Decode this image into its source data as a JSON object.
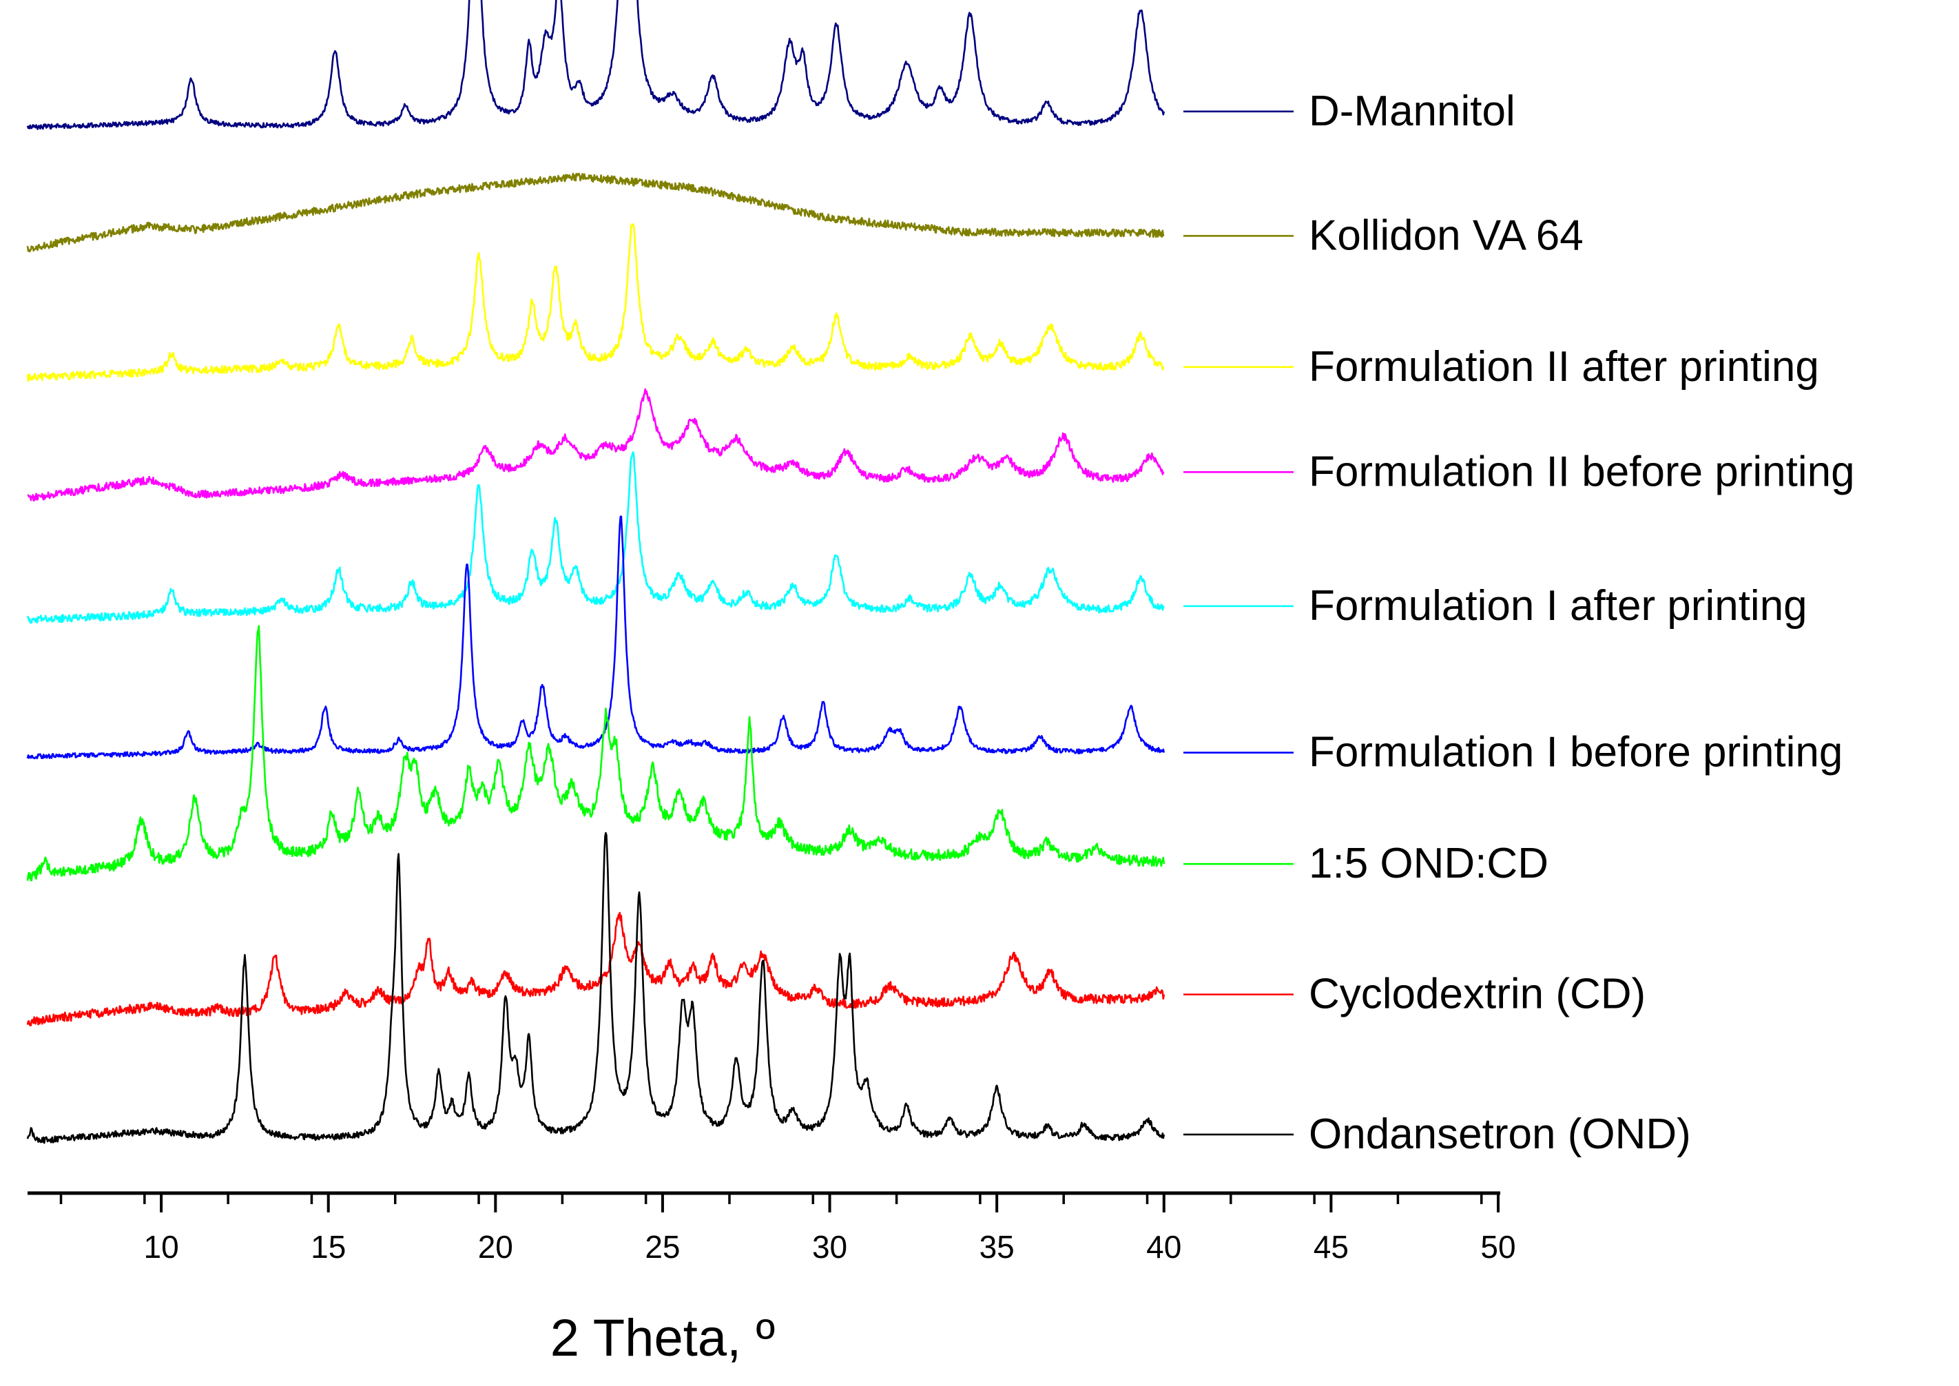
{
  "chart_data": {
    "type": "line",
    "title": "",
    "xlabel": "2 Theta, º",
    "ylabel": "",
    "xlim": [
      6,
      50
    ],
    "x_ticks": [
      10,
      15,
      20,
      25,
      30,
      35,
      40,
      45,
      50
    ],
    "legend_position": "right",
    "series": [
      {
        "name": "D-Mannitol",
        "color": "#000080",
        "baseline": 15.0,
        "background": [
          [
            6,
            0
          ],
          [
            10,
            0.05
          ],
          [
            14,
            0
          ],
          [
            40,
            0
          ]
        ],
        "peaks": [
          [
            10.9,
            0.6,
            0.15
          ],
          [
            15.2,
            1.0,
            0.17
          ],
          [
            17.3,
            0.25,
            0.15
          ],
          [
            19.4,
            3.55,
            0.17
          ],
          [
            21.0,
            0.9,
            0.12
          ],
          [
            21.5,
            0.9,
            0.2
          ],
          [
            21.9,
            1.7,
            0.16
          ],
          [
            22.5,
            0.35,
            0.15
          ],
          [
            23.95,
            5.7,
            0.19
          ],
          [
            25.3,
            0.3,
            0.3
          ],
          [
            26.5,
            0.6,
            0.22
          ],
          [
            28.8,
            1.0,
            0.22
          ],
          [
            29.2,
            0.7,
            0.15
          ],
          [
            30.2,
            1.3,
            0.2
          ],
          [
            32.3,
            0.8,
            0.3
          ],
          [
            33.3,
            0.35,
            0.18
          ],
          [
            34.2,
            1.45,
            0.24
          ],
          [
            36.5,
            0.3,
            0.2
          ],
          [
            39.3,
            1.55,
            0.25
          ]
        ],
        "noise": 0.03
      },
      {
        "name": "Kollidon VA 64",
        "color": "#808000",
        "baseline": 13.4,
        "background": [
          [
            6,
            0
          ],
          [
            9.6,
            0.3
          ],
          [
            11,
            0.25
          ],
          [
            14,
            0.45
          ],
          [
            18,
            0.75
          ],
          [
            22.5,
            0.95
          ],
          [
            26,
            0.8
          ],
          [
            30,
            0.4
          ],
          [
            34,
            0.22
          ],
          [
            40,
            0.2
          ]
        ],
        "peaks": [],
        "noise": 0.05
      },
      {
        "name": "Formulation II after printing",
        "color": "#ffff00",
        "baseline": 11.7,
        "background": [
          [
            6,
            0
          ],
          [
            9,
            0.05
          ],
          [
            12,
            0.1
          ],
          [
            20,
            0.15
          ],
          [
            30,
            0.12
          ],
          [
            40,
            0.1
          ]
        ],
        "peaks": [
          [
            10.3,
            0.25,
            0.13
          ],
          [
            13.6,
            0.12,
            0.15
          ],
          [
            15.3,
            0.55,
            0.16
          ],
          [
            17.5,
            0.35,
            0.15
          ],
          [
            19.5,
            1.45,
            0.17
          ],
          [
            21.1,
            0.75,
            0.15
          ],
          [
            21.8,
            1.25,
            0.17
          ],
          [
            22.4,
            0.45,
            0.15
          ],
          [
            24.1,
            1.9,
            0.18
          ],
          [
            25.5,
            0.35,
            0.25
          ],
          [
            26.5,
            0.3,
            0.2
          ],
          [
            27.5,
            0.2,
            0.2
          ],
          [
            28.9,
            0.25,
            0.2
          ],
          [
            30.2,
            0.7,
            0.18
          ],
          [
            32.4,
            0.15,
            0.2
          ],
          [
            34.2,
            0.4,
            0.22
          ],
          [
            35.1,
            0.3,
            0.2
          ],
          [
            36.6,
            0.55,
            0.3
          ],
          [
            39.3,
            0.45,
            0.22
          ]
        ],
        "noise": 0.05
      },
      {
        "name": "Formulation II before printing",
        "color": "#ff00ff",
        "baseline": 10.1,
        "background": [
          [
            6,
            0
          ],
          [
            9.7,
            0.25
          ],
          [
            11,
            0.05
          ],
          [
            15,
            0.15
          ],
          [
            20,
            0.3
          ],
          [
            24,
            0.45
          ],
          [
            27,
            0.4
          ],
          [
            30,
            0.2
          ],
          [
            40,
            0.2
          ]
        ],
        "peaks": [
          [
            15.4,
            0.15,
            0.3
          ],
          [
            19.7,
            0.35,
            0.25
          ],
          [
            21.3,
            0.3,
            0.3
          ],
          [
            22.1,
            0.35,
            0.3
          ],
          [
            23.3,
            0.2,
            0.3
          ],
          [
            24.5,
            0.9,
            0.3
          ],
          [
            25.9,
            0.55,
            0.35
          ],
          [
            27.2,
            0.35,
            0.3
          ],
          [
            28.9,
            0.15,
            0.3
          ],
          [
            30.5,
            0.4,
            0.3
          ],
          [
            32.3,
            0.15,
            0.3
          ],
          [
            34.4,
            0.3,
            0.4
          ],
          [
            35.3,
            0.25,
            0.3
          ],
          [
            37.0,
            0.6,
            0.35
          ],
          [
            39.6,
            0.35,
            0.3
          ]
        ],
        "noise": 0.05
      },
      {
        "name": "Formulation I after printing",
        "color": "#00ffff",
        "baseline": 8.5,
        "background": [
          [
            6,
            0
          ],
          [
            9,
            0.05
          ],
          [
            12,
            0.1
          ],
          [
            20,
            0.15
          ],
          [
            30,
            0.12
          ],
          [
            40,
            0.1
          ]
        ],
        "peaks": [
          [
            10.3,
            0.35,
            0.13
          ],
          [
            13.6,
            0.15,
            0.15
          ],
          [
            15.3,
            0.55,
            0.16
          ],
          [
            17.5,
            0.35,
            0.15
          ],
          [
            19.5,
            1.6,
            0.17
          ],
          [
            21.1,
            0.7,
            0.15
          ],
          [
            21.8,
            1.1,
            0.17
          ],
          [
            22.4,
            0.45,
            0.15
          ],
          [
            24.1,
            2.05,
            0.18
          ],
          [
            25.5,
            0.4,
            0.25
          ],
          [
            26.5,
            0.3,
            0.2
          ],
          [
            27.5,
            0.2,
            0.2
          ],
          [
            28.9,
            0.3,
            0.2
          ],
          [
            30.2,
            0.75,
            0.18
          ],
          [
            32.4,
            0.15,
            0.2
          ],
          [
            34.2,
            0.45,
            0.22
          ],
          [
            35.1,
            0.3,
            0.2
          ],
          [
            36.6,
            0.55,
            0.3
          ],
          [
            39.3,
            0.45,
            0.22
          ]
        ],
        "noise": 0.05
      },
      {
        "name": "Formulation I before printing",
        "color": "#0000ff",
        "baseline": 6.7,
        "background": [
          [
            6,
            0
          ],
          [
            12,
            0.05
          ],
          [
            20,
            0.05
          ],
          [
            40,
            0.05
          ]
        ],
        "peaks": [
          [
            10.8,
            0.3,
            0.12
          ],
          [
            12.9,
            0.1,
            0.2
          ],
          [
            14.9,
            0.6,
            0.13
          ],
          [
            17.1,
            0.15,
            0.13
          ],
          [
            19.15,
            2.5,
            0.15
          ],
          [
            20.8,
            0.35,
            0.13
          ],
          [
            21.4,
            0.85,
            0.15
          ],
          [
            22.1,
            0.15,
            0.15
          ],
          [
            23.75,
            3.1,
            0.15
          ],
          [
            25.3,
            0.1,
            0.2
          ],
          [
            25.8,
            0.1,
            0.2
          ],
          [
            26.3,
            0.1,
            0.2
          ],
          [
            28.6,
            0.45,
            0.15
          ],
          [
            29.8,
            0.65,
            0.15
          ],
          [
            31.8,
            0.25,
            0.2
          ],
          [
            32.1,
            0.2,
            0.15
          ],
          [
            33.9,
            0.6,
            0.18
          ],
          [
            36.3,
            0.2,
            0.18
          ],
          [
            39.0,
            0.6,
            0.2
          ]
        ],
        "noise": 0.03
      },
      {
        "name": "1:5 OND:CD",
        "color": "#00ff00",
        "baseline": 5.1,
        "background": [
          [
            6,
            0
          ],
          [
            8,
            0.1
          ],
          [
            10,
            0.15
          ],
          [
            14,
            0.25
          ],
          [
            18,
            0.5
          ],
          [
            22,
            0.6
          ],
          [
            26,
            0.5
          ],
          [
            30,
            0.3
          ],
          [
            40,
            0.2
          ]
        ],
        "peaks": [
          [
            6.5,
            0.2,
            0.1
          ],
          [
            9.4,
            0.6,
            0.2
          ],
          [
            11.0,
            0.85,
            0.18
          ],
          [
            12.4,
            0.4,
            0.15
          ],
          [
            12.9,
            3.05,
            0.15
          ],
          [
            15.1,
            0.5,
            0.13
          ],
          [
            15.9,
            0.7,
            0.15
          ],
          [
            16.5,
            0.3,
            0.15
          ],
          [
            17.3,
            0.95,
            0.18
          ],
          [
            17.6,
            0.75,
            0.15
          ],
          [
            18.2,
            0.5,
            0.2
          ],
          [
            19.2,
            0.75,
            0.15
          ],
          [
            19.6,
            0.45,
            0.15
          ],
          [
            20.1,
            0.8,
            0.18
          ],
          [
            21.0,
            1.0,
            0.2
          ],
          [
            21.6,
            0.95,
            0.2
          ],
          [
            22.3,
            0.5,
            0.2
          ],
          [
            23.3,
            1.35,
            0.15
          ],
          [
            23.6,
            0.9,
            0.15
          ],
          [
            24.7,
            0.85,
            0.18
          ],
          [
            25.5,
            0.5,
            0.2
          ],
          [
            26.2,
            0.45,
            0.2
          ],
          [
            27.6,
            1.6,
            0.12
          ],
          [
            28.5,
            0.3,
            0.2
          ],
          [
            30.6,
            0.3,
            0.25
          ],
          [
            31.5,
            0.2,
            0.25
          ],
          [
            34.5,
            0.2,
            0.3
          ],
          [
            35.1,
            0.6,
            0.22
          ],
          [
            36.5,
            0.2,
            0.2
          ],
          [
            38.0,
            0.15,
            0.3
          ]
        ],
        "noise": 0.07
      },
      {
        "name": "Cyclodextrin (CD)",
        "color": "#ff0000",
        "baseline": 3.2,
        "background": [
          [
            6,
            0
          ],
          [
            9.8,
            0.2
          ],
          [
            11,
            0.1
          ],
          [
            14,
            0.1
          ],
          [
            18,
            0.25
          ],
          [
            23,
            0.4
          ],
          [
            27,
            0.35
          ],
          [
            30,
            0.2
          ],
          [
            35,
            0.25
          ],
          [
            40,
            0.3
          ]
        ],
        "peaks": [
          [
            11.7,
            0.1,
            0.15
          ],
          [
            13.4,
            0.75,
            0.18
          ],
          [
            15.5,
            0.2,
            0.2
          ],
          [
            16.5,
            0.2,
            0.2
          ],
          [
            17.7,
            0.35,
            0.15
          ],
          [
            18.0,
            0.75,
            0.12
          ],
          [
            18.6,
            0.35,
            0.15
          ],
          [
            19.3,
            0.2,
            0.15
          ],
          [
            20.3,
            0.3,
            0.2
          ],
          [
            22.1,
            0.3,
            0.2
          ],
          [
            23.7,
            0.95,
            0.2
          ],
          [
            24.3,
            0.5,
            0.2
          ],
          [
            25.2,
            0.35,
            0.15
          ],
          [
            25.9,
            0.3,
            0.15
          ],
          [
            26.5,
            0.45,
            0.15
          ],
          [
            27.4,
            0.3,
            0.2
          ],
          [
            28.0,
            0.55,
            0.25
          ],
          [
            29.6,
            0.2,
            0.2
          ],
          [
            31.8,
            0.25,
            0.25
          ],
          [
            35.5,
            0.6,
            0.3
          ],
          [
            36.6,
            0.35,
            0.2
          ],
          [
            39.8,
            0.1,
            0.2
          ]
        ],
        "noise": 0.06
      },
      {
        "name": "Ondansetron (OND)",
        "color": "#000000",
        "baseline": 1.6,
        "background": [
          [
            6,
            0
          ],
          [
            7,
            0.05
          ],
          [
            9.8,
            0.15
          ],
          [
            11.5,
            0.05
          ],
          [
            14,
            0.05
          ],
          [
            40,
            0.05
          ]
        ],
        "peaks": [
          [
            6.1,
            0.15,
            0.1
          ],
          [
            12.5,
            2.4,
            0.14
          ],
          [
            16.9,
            0.8,
            0.12
          ],
          [
            17.1,
            3.5,
            0.12
          ],
          [
            18.3,
            0.8,
            0.12
          ],
          [
            18.7,
            0.35,
            0.12
          ],
          [
            19.2,
            0.75,
            0.12
          ],
          [
            20.3,
            1.7,
            0.13
          ],
          [
            20.6,
            0.7,
            0.13
          ],
          [
            21.0,
            1.2,
            0.12
          ],
          [
            23.3,
            3.95,
            0.15
          ],
          [
            24.3,
            3.1,
            0.15
          ],
          [
            25.6,
            1.5,
            0.15
          ],
          [
            25.9,
            1.4,
            0.15
          ],
          [
            27.2,
            0.95,
            0.15
          ],
          [
            28.0,
            2.3,
            0.15
          ],
          [
            28.9,
            0.3,
            0.15
          ],
          [
            30.3,
            2.1,
            0.15
          ],
          [
            30.6,
            1.9,
            0.12
          ],
          [
            31.1,
            0.6,
            0.18
          ],
          [
            32.3,
            0.4,
            0.15
          ],
          [
            33.6,
            0.25,
            0.15
          ],
          [
            35.0,
            0.65,
            0.18
          ],
          [
            36.5,
            0.15,
            0.15
          ],
          [
            37.6,
            0.2,
            0.15
          ],
          [
            39.5,
            0.25,
            0.2
          ]
        ],
        "noise": 0.04
      }
    ]
  }
}
